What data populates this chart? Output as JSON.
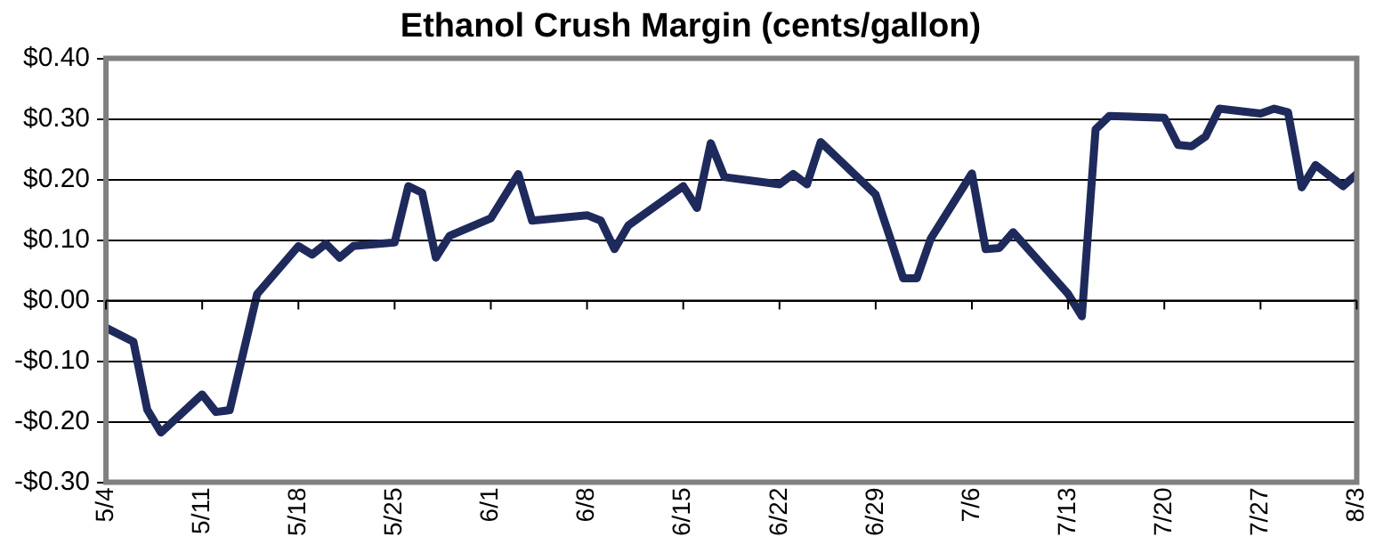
{
  "chart_data": {
    "type": "line",
    "title": "Ethanol Crush Margin (cents/gallon)",
    "x": [
      "--05-04",
      "--05-06",
      "--05-07",
      "--05-08",
      "--05-11",
      "--05-12",
      "--05-13",
      "--05-15",
      "--05-18",
      "--05-19",
      "--05-20",
      "--05-21",
      "--05-22",
      "--05-25",
      "--05-26",
      "--05-27",
      "--05-28",
      "--05-29",
      "--06-01",
      "--06-03",
      "--06-04",
      "--06-08",
      "--06-09",
      "--06-10",
      "--06-11",
      "--06-15",
      "--06-16",
      "--06-17",
      "--06-18",
      "--06-22",
      "--06-23",
      "--06-24",
      "--06-25",
      "--06-29",
      "--06-30",
      "--07-01",
      "--07-02",
      "--07-03",
      "--07-06",
      "--07-07",
      "--07-08",
      "--07-09",
      "--07-13",
      "--07-14",
      "--07-15",
      "--07-16",
      "--07-20",
      "--07-21",
      "--07-22",
      "--07-23",
      "--07-24",
      "--07-27",
      "--07-28",
      "--07-29",
      "--07-30",
      "--07-31",
      "--08-02",
      "--08-03"
    ],
    "series": [
      {
        "color": "#1f2a5c",
        "values": [
          -0.045,
          -0.068,
          -0.18,
          -0.218,
          -0.155,
          -0.184,
          -0.181,
          0.011,
          0.09,
          0.076,
          0.094,
          0.071,
          0.09,
          0.096,
          0.189,
          0.178,
          0.071,
          0.107,
          0.136,
          0.209,
          0.132,
          0.141,
          0.132,
          0.085,
          0.124,
          0.189,
          0.153,
          0.26,
          0.204,
          0.192,
          0.209,
          0.192,
          0.262,
          0.175,
          0.107,
          0.037,
          0.037,
          0.102,
          0.21,
          0.085,
          0.087,
          0.113,
          0.011,
          -0.026,
          0.283,
          0.305,
          0.302,
          0.257,
          0.255,
          0.271,
          0.317,
          0.309,
          0.317,
          0.311,
          0.187,
          0.224,
          0.189,
          0.209
        ]
      }
    ],
    "xlim": [
      "--05-04",
      "--08-03"
    ],
    "xticks": [
      {
        "value": "--05-04",
        "label": "5/4"
      },
      {
        "value": "--05-11",
        "label": "5/11"
      },
      {
        "value": "--05-18",
        "label": "5/18"
      },
      {
        "value": "--05-25",
        "label": "5/25"
      },
      {
        "value": "--06-01",
        "label": "6/1"
      },
      {
        "value": "--06-08",
        "label": "6/8"
      },
      {
        "value": "--06-15",
        "label": "6/15"
      },
      {
        "value": "--06-22",
        "label": "6/22"
      },
      {
        "value": "--06-29",
        "label": "6/29"
      },
      {
        "value": "--07-06",
        "label": "7/6"
      },
      {
        "value": "--07-13",
        "label": "7/13"
      },
      {
        "value": "--07-20",
        "label": "7/20"
      },
      {
        "value": "--07-27",
        "label": "7/27"
      },
      {
        "value": "--08-03",
        "label": "8/3"
      }
    ],
    "ylim": [
      -0.3,
      0.4
    ],
    "yticks": [
      {
        "value": -0.3,
        "label": "-$0.30"
      },
      {
        "value": -0.2,
        "label": "-$0.20"
      },
      {
        "value": -0.1,
        "label": "-$0.10"
      },
      {
        "value": 0,
        "label": "$0.00"
      },
      {
        "value": 0.1,
        "label": "$0.10"
      },
      {
        "value": 0.2,
        "label": "$0.20"
      },
      {
        "value": 0.3,
        "label": "$0.30"
      },
      {
        "value": 0.4,
        "label": "$0.40"
      }
    ],
    "grid": "y",
    "legend": false,
    "marker": "none",
    "line_style": "solid"
  }
}
